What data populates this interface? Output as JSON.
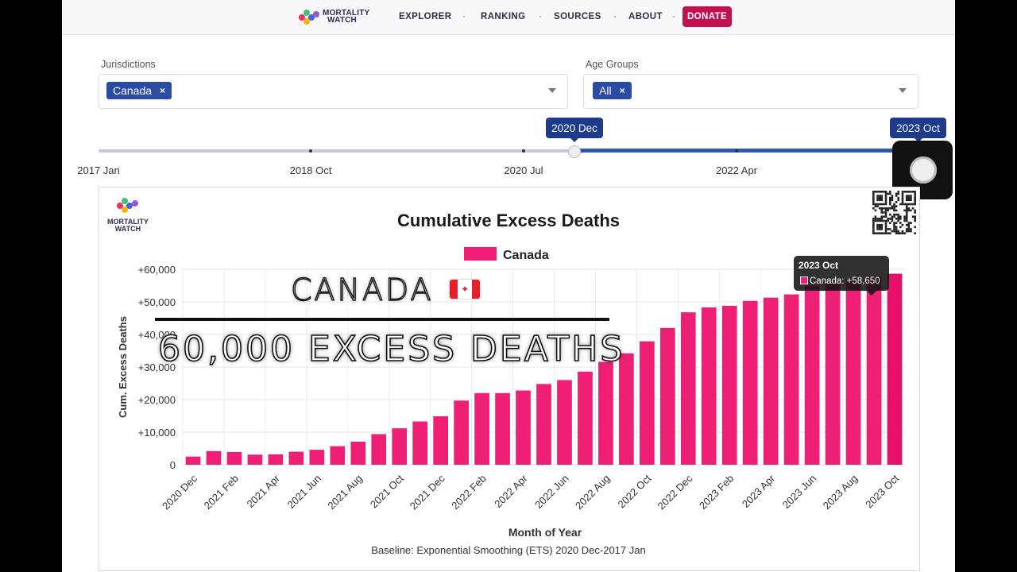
{
  "nav": {
    "logo_line1": "MORTALITY",
    "logo_line2": "WATCH",
    "items": [
      "EXPLORER",
      "RANKING",
      "SOURCES",
      "ABOUT"
    ],
    "donate": "DONATE"
  },
  "filters": {
    "jurisdictions_label": "Jurisdictions",
    "jurisdictions_chip": "Canada",
    "age_groups_label": "Age Groups",
    "age_groups_chip": "All",
    "remove_symbol": "×"
  },
  "slider": {
    "start_bubble": "2020 Dec",
    "end_bubble": "2023 Oct",
    "labels": [
      "2017 Jan",
      "2018 Oct",
      "2020 Jul",
      "2022 Apr"
    ]
  },
  "overlay": {
    "title": "CANADA",
    "subtitle": "60,000 EXCESS DEATHS",
    "flag_symbol": "✦"
  },
  "tooltip": {
    "title": "2023 Oct",
    "text": "Canada: +58,650"
  },
  "colors": {
    "bar": "#ef1f75",
    "bar_highlight": "#e60f6a",
    "accent": "#c3114f",
    "chip": "#2b4aa3"
  },
  "chart_data": {
    "type": "bar",
    "title": "Cumulative Excess Deaths",
    "legend": [
      "Canada"
    ],
    "xlabel": "Month of Year",
    "ylabel": "Cum. Excess Deaths",
    "caption": "Baseline: Exponential Smoothing (ETS) 2020 Dec-2017 Jan",
    "ylim": [
      0,
      60000
    ],
    "yticks": [
      0,
      10000,
      20000,
      30000,
      40000,
      50000,
      60000
    ],
    "ytick_labels": [
      "0",
      "+10,000",
      "+20,000",
      "+30,000",
      "+40,000",
      "+50,000",
      "+60,000"
    ],
    "categories": [
      "2020 Dec",
      "2021 Jan",
      "2021 Feb",
      "2021 Mar",
      "2021 Apr",
      "2021 May",
      "2021 Jun",
      "2021 Jul",
      "2021 Aug",
      "2021 Sep",
      "2021 Oct",
      "2021 Nov",
      "2021 Dec",
      "2022 Jan",
      "2022 Feb",
      "2022 Mar",
      "2022 Apr",
      "2022 May",
      "2022 Jun",
      "2022 Jul",
      "2022 Aug",
      "2022 Sep",
      "2022 Oct",
      "2022 Nov",
      "2022 Dec",
      "2023 Jan",
      "2023 Feb",
      "2023 Mar",
      "2023 Apr",
      "2023 May",
      "2023 Jun",
      "2023 Jul",
      "2023 Aug",
      "2023 Sep",
      "2023 Oct"
    ],
    "x_tick_labels": [
      "2020 Dec",
      "2021 Feb",
      "2021 Apr",
      "2021 Jun",
      "2021 Aug",
      "2021 Oct",
      "2021 Dec",
      "2022 Feb",
      "2022 Apr",
      "2022 Jun",
      "2022 Aug",
      "2022 Oct",
      "2022 Dec",
      "2023 Feb",
      "2023 Apr",
      "2023 Jun",
      "2023 Aug",
      "2023 Oct"
    ],
    "series": [
      {
        "name": "Canada",
        "values": [
          2500,
          4200,
          3900,
          3100,
          3200,
          4000,
          4600,
          5700,
          7100,
          9400,
          11200,
          13300,
          14900,
          19700,
          22000,
          22000,
          22800,
          24800,
          26000,
          28600,
          31600,
          34200,
          37900,
          42000,
          46800,
          48300,
          48800,
          50300,
          51300,
          52300,
          55000,
          55800,
          56800,
          57800,
          58650
        ]
      }
    ]
  }
}
